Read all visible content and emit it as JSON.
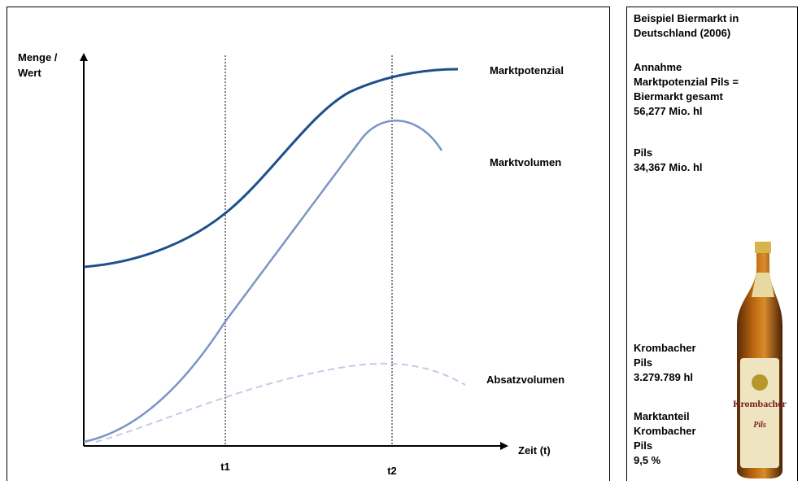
{
  "diagram": {
    "y_axis_label": [
      "Menge /",
      "Wert"
    ],
    "x_axis_label": "Zeit (t)",
    "time_markers": [
      "t1",
      "t2"
    ],
    "curves": [
      "Marktpotenzial",
      "Marktvolumen",
      "Absatzvolumen"
    ],
    "sidebar": [
      [
        "Beispiel  Biermarkt in",
        "Deutschland (2006)"
      ],
      [
        "Annahme",
        "Marktpotenzial Pils =",
        "Biermarkt gesamt",
        "56,277 Mio. hl"
      ],
      [
        "Pils",
        "34,367 Mio. hl"
      ],
      [
        "Krombacher",
        "Pils",
        "3.279.789 hl"
      ],
      [
        "Marktanteil",
        "Krombacher",
        "Pils",
        "9,5 %"
      ]
    ]
  }
}
